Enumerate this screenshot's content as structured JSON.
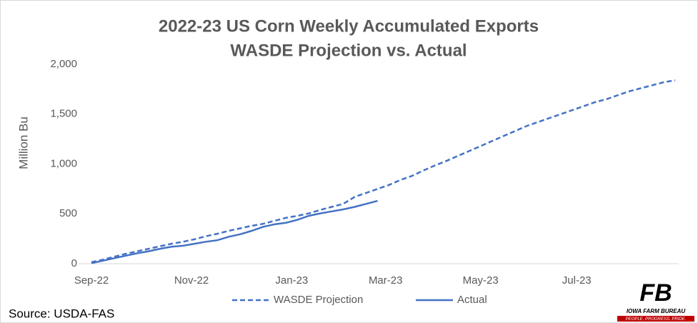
{
  "chart_data": {
    "type": "line",
    "title": "2022-23 US Corn Weekly Accumulated Exports",
    "subtitle": "WASDE Projection vs. Actual",
    "y_label": "Million Bu",
    "source": "Source: USDA-FAS",
    "logo_mark": "FB",
    "logo_name": "IOWA FARM BUREAU",
    "logo_tagline": "PEOPLE. PROGRESS. PRIDE.",
    "x": [
      0,
      1,
      2,
      3,
      4,
      5,
      6,
      7,
      8,
      9,
      10,
      11,
      12,
      13,
      14,
      15,
      16,
      17,
      18,
      19,
      20,
      21,
      22,
      23,
      24,
      25,
      26,
      27,
      28,
      29,
      30,
      31,
      32,
      33,
      34,
      35,
      36,
      37,
      38,
      39,
      40,
      41,
      42,
      43,
      44,
      45,
      46,
      47,
      48,
      49,
      50,
      51
    ],
    "xlim": [
      0,
      51
    ],
    "xticks": [
      {
        "value": 0,
        "label": "Sep-22"
      },
      {
        "value": 8.74,
        "label": "Nov-22"
      },
      {
        "value": 17.5,
        "label": "Jan-23"
      },
      {
        "value": 25.7,
        "label": "Mar-23"
      },
      {
        "value": 34,
        "label": "May-23"
      },
      {
        "value": 42.4,
        "label": "Jul-23"
      }
    ],
    "ylim": [
      0,
      2000
    ],
    "yticks": [
      0,
      500,
      {
        "value": 1000,
        "label": "1,000"
      },
      {
        "value": 1500,
        "label": "1,500"
      },
      {
        "value": 2000,
        "label": "2,000"
      }
    ],
    "series": [
      {
        "name": "WASDE Projection",
        "color": "#4472c4",
        "dashed": true,
        "values": [
          15,
          40,
          70,
          100,
          125,
          150,
          175,
          200,
          220,
          245,
          275,
          300,
          330,
          355,
          380,
          400,
          430,
          460,
          480,
          505,
          540,
          570,
          600,
          670,
          710,
          750,
          790,
          840,
          880,
          935,
          985,
          1030,
          1080,
          1130,
          1180,
          1230,
          1280,
          1330,
          1380,
          1420,
          1460,
          1500,
          1540,
          1580,
          1620,
          1650,
          1690,
          1730,
          1760,
          1790,
          1820,
          1840
        ]
      },
      {
        "name": "Actual",
        "color": "#4472c4",
        "dashed": false,
        "values": [
          5,
          30,
          55,
          80,
          105,
          125,
          150,
          170,
          180,
          200,
          220,
          235,
          270,
          295,
          330,
          370,
          395,
          410,
          440,
          480,
          505,
          525,
          545,
          570,
          600,
          630,
          null,
          null,
          null,
          null,
          null,
          null,
          null,
          null,
          null,
          null,
          null,
          null,
          null,
          null,
          null,
          null,
          null,
          null,
          null,
          null,
          null,
          null,
          null,
          null,
          null,
          null
        ]
      }
    ]
  }
}
